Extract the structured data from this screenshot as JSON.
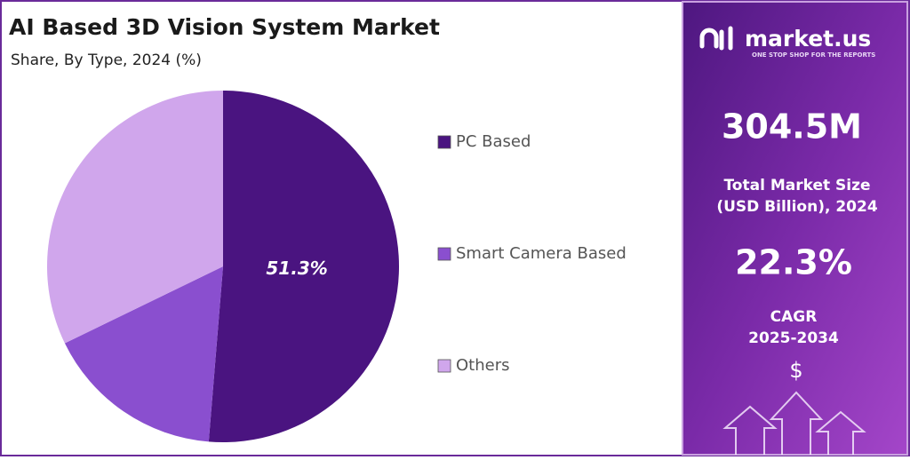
{
  "chart_data": {
    "type": "pie",
    "title": "AI Based 3D Vision System Market",
    "subtitle": "Share, By Type, 2024 (%)",
    "categories": [
      "PC Based",
      "Smart Camera Based",
      "Others"
    ],
    "values": [
      51.3,
      16.5,
      32.2
    ],
    "value_labels": [
      "51.3%",
      null,
      null
    ],
    "colors": [
      "#4a1480",
      "#8a4fcf",
      "#d0a6ec"
    ],
    "legend": "right"
  },
  "sidebar": {
    "brand": "market.us",
    "tagline": "ONE STOP SHOP FOR THE REPORTS",
    "market_size": "304.5M",
    "market_size_label": [
      "Total Market Size",
      "(USD Billion), 2024"
    ],
    "cagr": "22.3%",
    "cagr_label": [
      "CAGR",
      "2025-2034"
    ],
    "icon": "$"
  }
}
